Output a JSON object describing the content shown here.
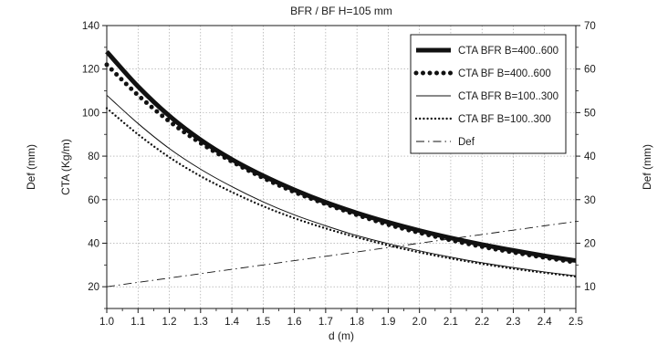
{
  "chart_data": {
    "type": "line",
    "title": "BFR / BF H=105 mm",
    "xlabel": "d (m)",
    "ylabel_left_top": "Def (mm)",
    "ylabel_left_bottom": "CTA (Kg/m)",
    "ylabel_right": "Def (mm)",
    "xlim": [
      1.0,
      2.5
    ],
    "ylim_left": [
      10,
      140
    ],
    "ylim_right": [
      5,
      70
    ],
    "x_ticks": [
      "1.0",
      "1.1",
      "1.2",
      "1.3",
      "1.4",
      "1.5",
      "1.6",
      "1.7",
      "1.8",
      "1.9",
      "2.0",
      "2.1",
      "2.2",
      "2.3",
      "2.4",
      "2.5"
    ],
    "y_left_ticks": [
      "20",
      "40",
      "60",
      "80",
      "100",
      "120",
      "140"
    ],
    "y_right_ticks": [
      "10",
      "20",
      "30",
      "40",
      "50",
      "60",
      "70"
    ],
    "grid": true,
    "legend_position": "top-right",
    "x": [
      1.0,
      1.1,
      1.2,
      1.3,
      1.4,
      1.5,
      1.6,
      1.7,
      1.8,
      1.9,
      2.0,
      2.1,
      2.2,
      2.3,
      2.4,
      2.5
    ],
    "series": [
      {
        "name": "CTA BFR B=400..600",
        "axis": "left",
        "style": "thick-solid",
        "values": [
          128,
          112,
          98.5,
          87.5,
          78.5,
          71,
          64.5,
          58.8,
          53.9,
          49.6,
          45.8,
          42.4,
          39.4,
          36.7,
          34.2,
          32
        ]
      },
      {
        "name": "CTA BF B=400..600",
        "axis": "left",
        "style": "thick-dotted",
        "values": [
          122,
          108,
          96,
          86,
          77.5,
          70,
          63.5,
          58,
          53,
          48.5,
          44.8,
          41.4,
          38.4,
          35.8,
          33.4,
          31.2
        ]
      },
      {
        "name": "CTA BFR B=100..300",
        "axis": "left",
        "style": "thin-solid",
        "values": [
          108,
          95,
          83.5,
          74,
          66,
          59,
          53,
          48,
          43.5,
          39.8,
          36.5,
          33.6,
          31,
          28.8,
          26.8,
          25
        ]
      },
      {
        "name": "CTA BF B=100..300",
        "axis": "left",
        "style": "thin-dotted",
        "values": [
          102,
          90,
          79.5,
          70.8,
          63.5,
          57,
          51.5,
          46.8,
          42.7,
          39,
          35.8,
          33,
          30.5,
          28.3,
          26.4,
          24.7
        ]
      },
      {
        "name": "Def",
        "axis": "right",
        "style": "dash-dot",
        "values": [
          10,
          11,
          12,
          13,
          14,
          15,
          16,
          17,
          18,
          19,
          20,
          21,
          22,
          23,
          24,
          25
        ]
      }
    ]
  }
}
